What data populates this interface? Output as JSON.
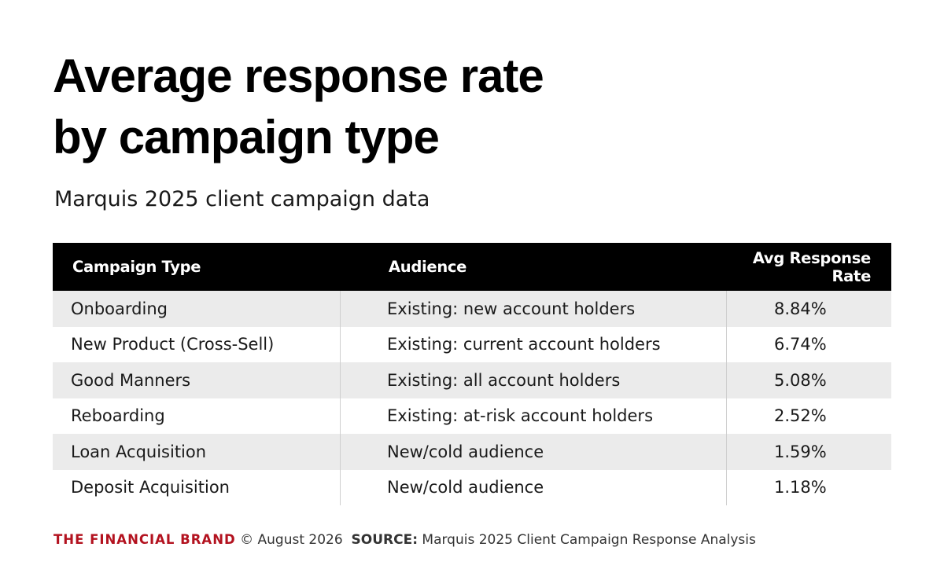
{
  "chart_data": {
    "type": "table",
    "title_lines": [
      "Average response rate",
      "by campaign type"
    ],
    "subtitle": "Marquis 2025 client campaign data",
    "columns": [
      "Campaign Type",
      "Audience",
      "Avg Response Rate"
    ],
    "rows": [
      {
        "type": "Onboarding",
        "audience": "Existing: new account holders",
        "rate": "8.84%"
      },
      {
        "type": "New Product (Cross-Sell)",
        "audience": "Existing: current account holders",
        "rate": "6.74%"
      },
      {
        "type": "Good Manners",
        "audience": "Existing: all account holders",
        "rate": "5.08%"
      },
      {
        "type": "Reboarding",
        "audience": "Existing: at-risk account holders",
        "rate": "2.52%"
      },
      {
        "type": "Loan Acquisition",
        "audience": "New/cold audience",
        "rate": "1.59%"
      },
      {
        "type": "Deposit Acquisition",
        "audience": "New/cold audience",
        "rate": "1.18%"
      }
    ]
  },
  "footer": {
    "brand": "THE FINANCIAL BRAND",
    "copyright": "© August 2026",
    "source_label": "SOURCE:",
    "source_text": "Marquis 2025 Client Campaign Response Analysis"
  },
  "colors": {
    "header_bg": "#000000",
    "row_alt_bg": "#ebebeb",
    "brand_red": "#b3121f"
  }
}
